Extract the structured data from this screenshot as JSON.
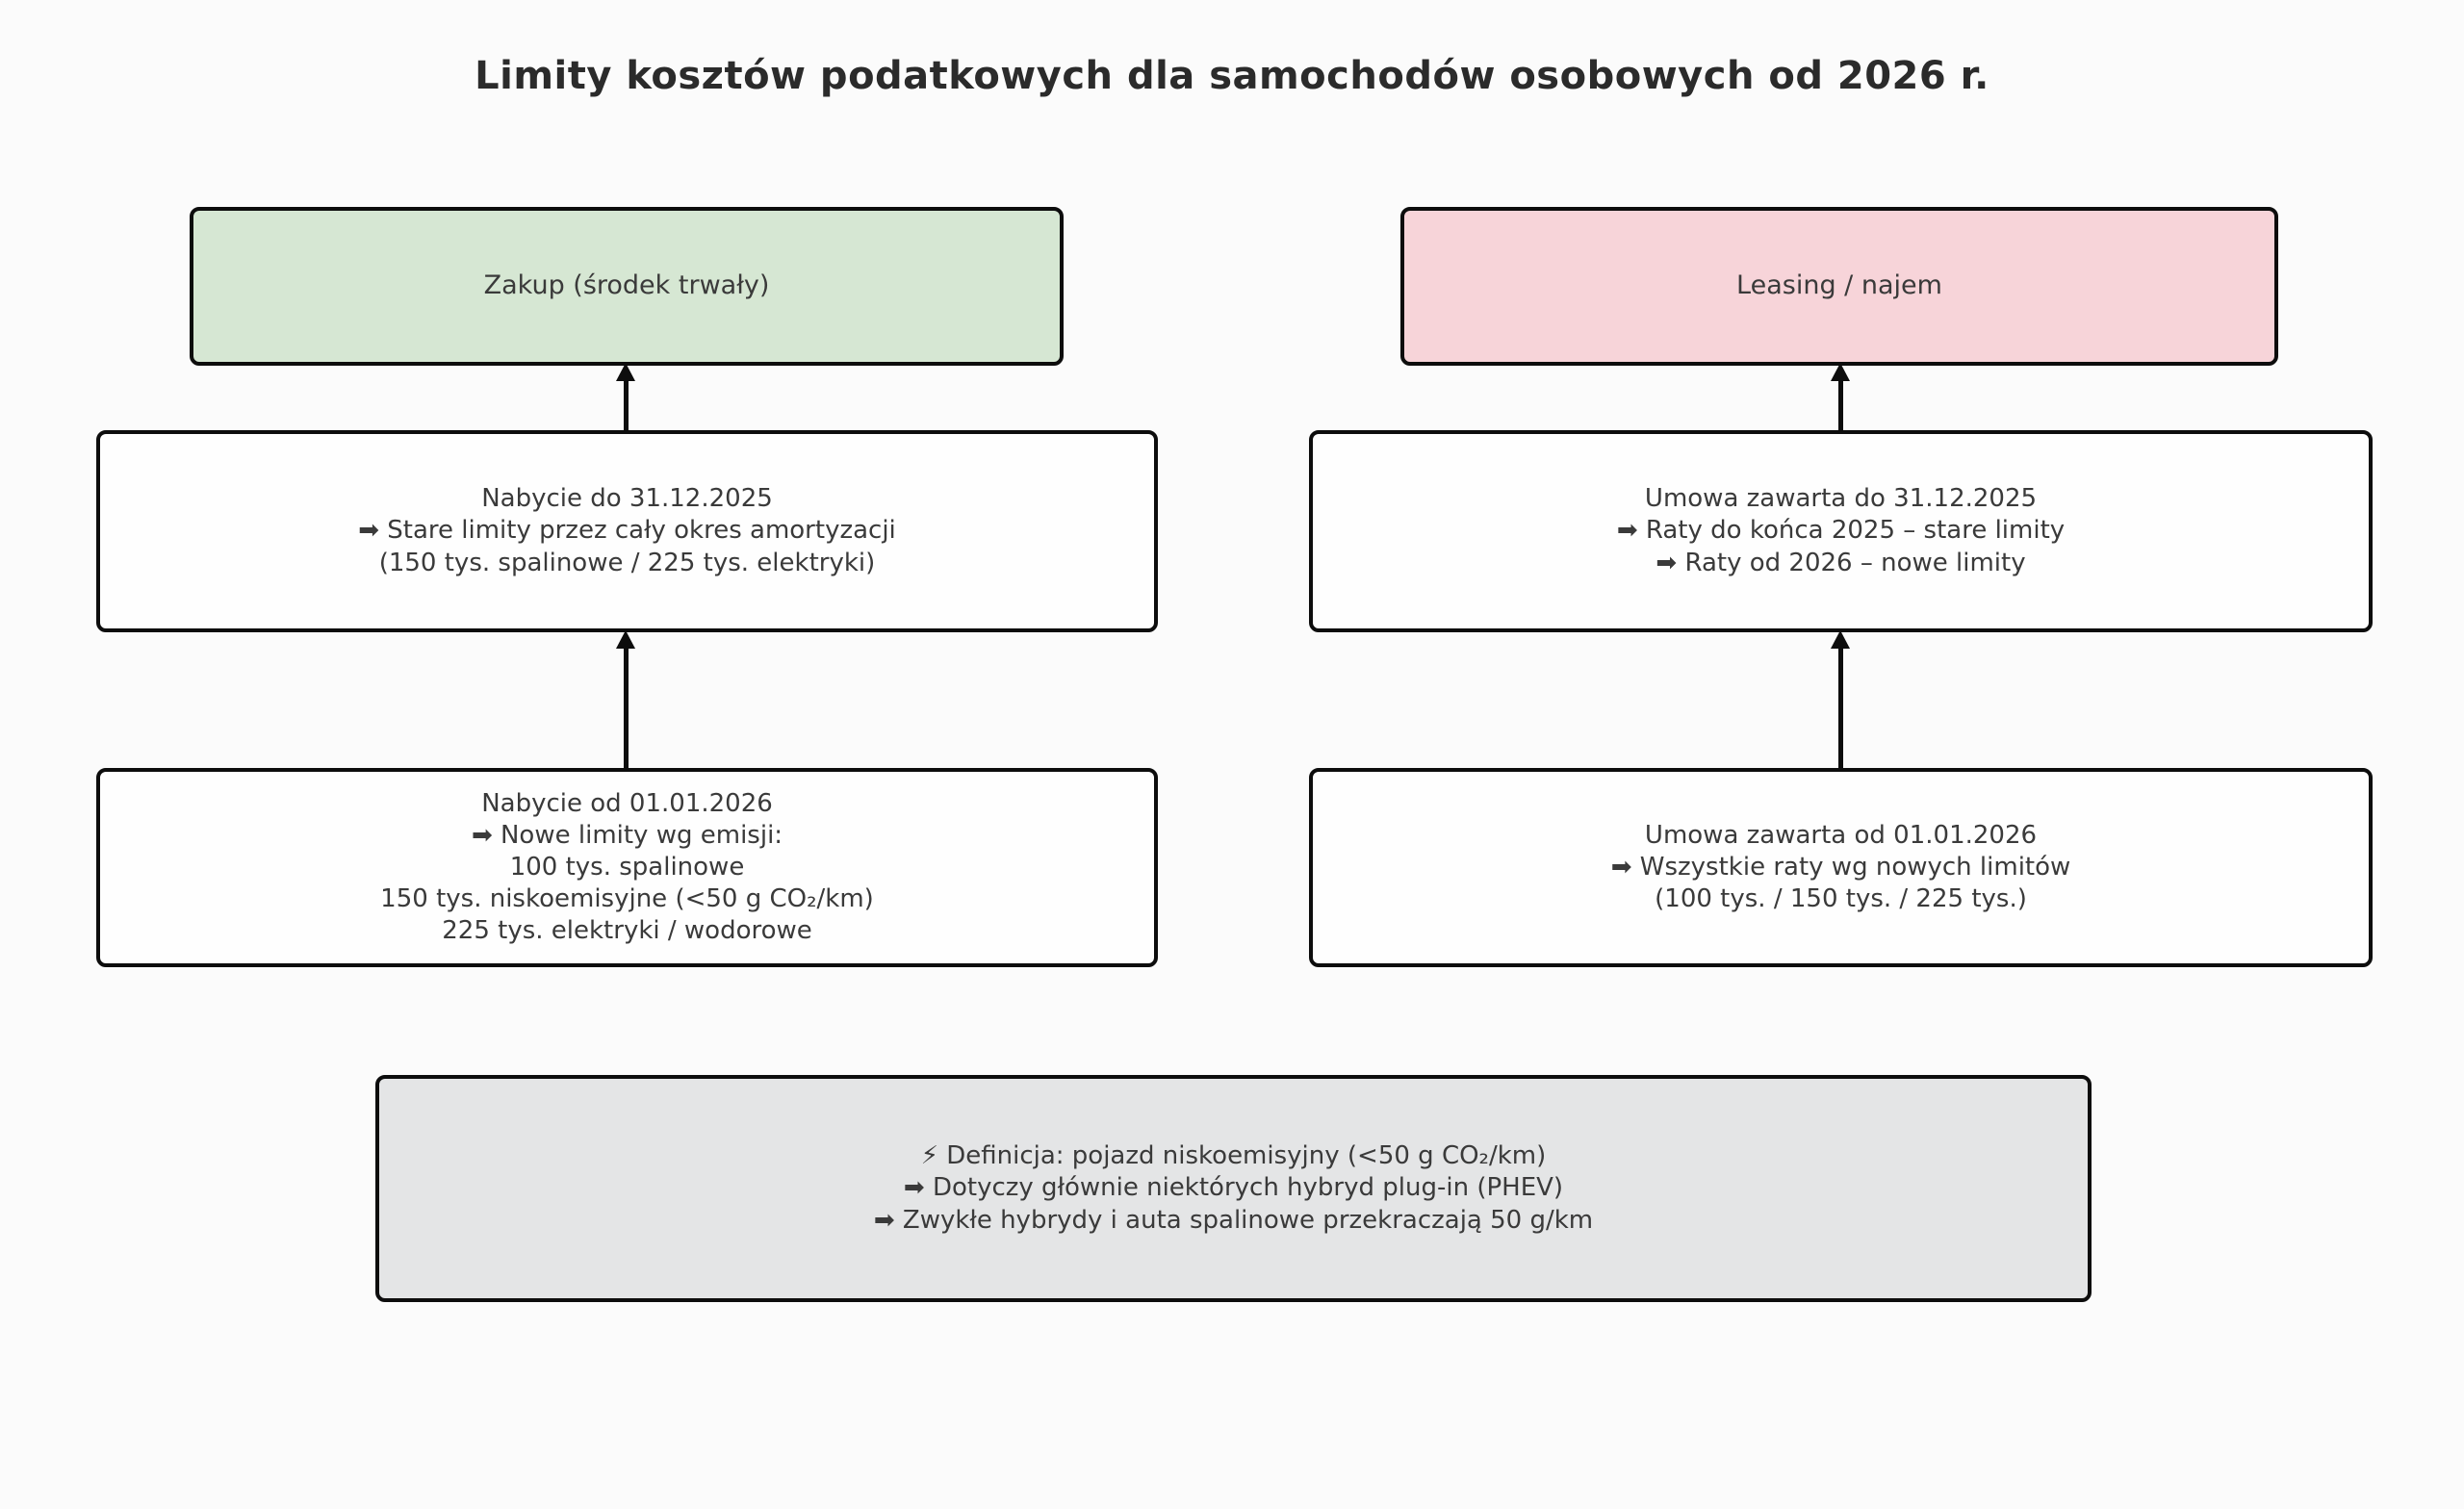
{
  "title": "Limity kosztów podatkowych dla samochodów osobowych od 2026 r.",
  "colors": {
    "zakup_header_bg": "#d6e7d3",
    "leasing_header_bg": "#f7d4d9",
    "definition_bg": "#e4e5e6",
    "node_bg": "#fefefe",
    "border": "#0d0d0d",
    "text": "#3a3a3a",
    "background": "#fbfbfb"
  },
  "columns": {
    "zakup": {
      "header": "Zakup (środek trwały)",
      "nabycie_do_2025": {
        "lines": [
          "Nabycie do 31.12.2025",
          "➡ Stare limity przez cały okres amortyzacji",
          "(150 tys. spalinowe / 225 tys. elektryki)"
        ]
      },
      "nabycie_od_2026": {
        "lines": [
          "Nabycie od 01.01.2026",
          "➡ Nowe limity wg emisji:",
          "100 tys. spalinowe",
          "150 tys. niskoemisyjne (<50 g CO₂/km)",
          "225 tys. elektryki / wodorowe"
        ]
      }
    },
    "leasing": {
      "header": "Leasing / najem",
      "umowa_do_2025": {
        "lines": [
          "Umowa zawarta do 31.12.2025",
          "➡ Raty do końca 2025 – stare limity",
          "➡ Raty od 2026 – nowe limity"
        ]
      },
      "umowa_od_2026": {
        "lines": [
          "Umowa zawarta od 01.01.2026",
          "➡ Wszystkie raty wg nowych limitów",
          "(100 tys. / 150 tys. / 225 tys.)"
        ]
      }
    }
  },
  "definition": {
    "lines": [
      "⚡ Definicja: pojazd niskoemisyjny (<50 g CO₂/km)",
      "➡ Dotyczy głównie niektórych hybryd plug-in (PHEV)",
      "➡ Zwykłe hybrydy i auta spalinowe przekraczają 50 g/km"
    ]
  }
}
